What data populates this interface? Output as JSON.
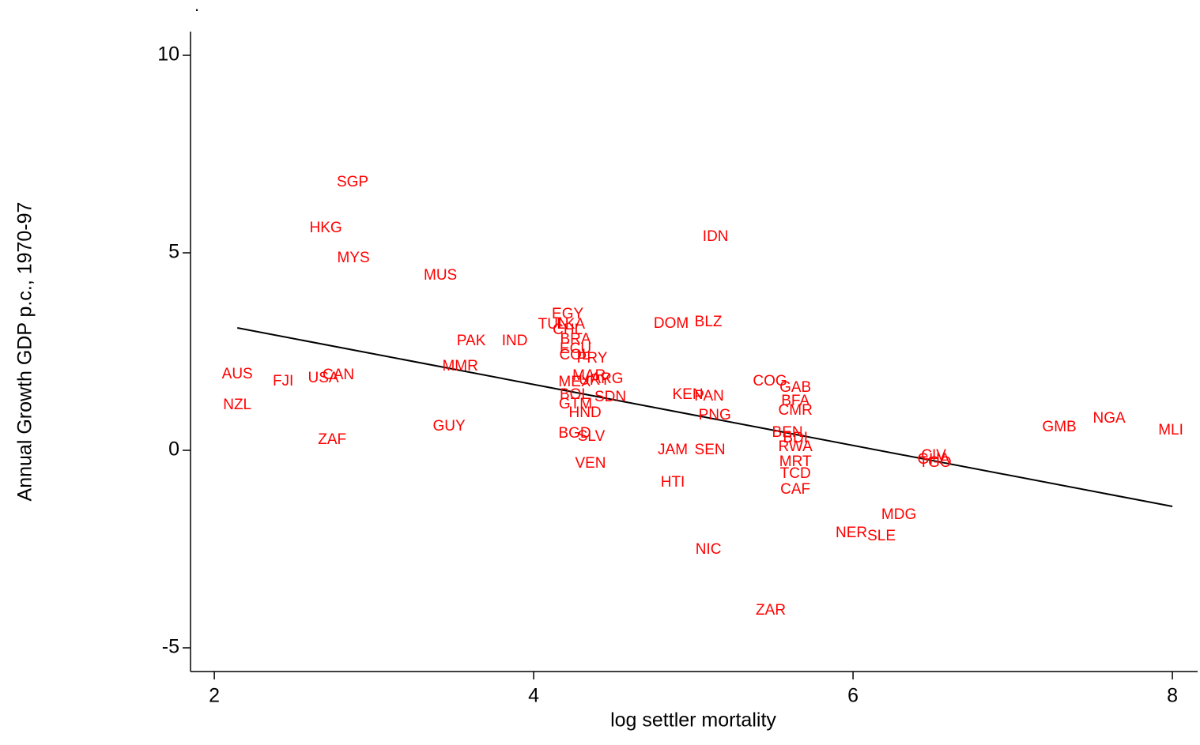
{
  "chart_data": {
    "type": "scatter",
    "title": ".",
    "x_label": "log settler mortality",
    "y_label": "Annual Growth GDP p.c., 1970-97",
    "xlim": [
      1.851,
      8.158
    ],
    "ylim": [
      -5.6,
      10.6
    ],
    "xticks": [
      2,
      4,
      6,
      8
    ],
    "yticks": [
      -5,
      0,
      5,
      10
    ],
    "color": "#ff0000",
    "labels": [
      "SGP",
      "HKG",
      "MYS",
      "MUS",
      "IDN",
      "EGY",
      "TUN",
      "LKA",
      "CHL",
      "BRA",
      "PAK",
      "IND",
      "ECU",
      "COL",
      "PRY",
      "DOM",
      "BLZ",
      "MMR",
      "AUS",
      "FJI",
      "USA",
      "CAN",
      "NZL",
      "ZAF",
      "GUY",
      "MAR",
      "ARG",
      "URY",
      "MEX",
      "BOL",
      "SDN",
      "GTM",
      "HND",
      "BGD",
      "SLV",
      "VEN",
      "KEN",
      "PAN",
      "PNG",
      "JAM",
      "SEN",
      "HTI",
      "NIC",
      "ZAR",
      "COG",
      "GAB",
      "BFA",
      "CMR",
      "BEN",
      "BDI",
      "RWA",
      "MRT",
      "TCD",
      "CAF",
      "MDG",
      "NER",
      "SLE",
      "CIV",
      "GHA",
      "TGO",
      "GMB",
      "NGA",
      "MLI"
    ],
    "x": [
      2.866,
      2.698,
      2.871,
      3.416,
      5.139,
      4.213,
      4.124,
      4.233,
      4.213,
      4.262,
      3.609,
      3.881,
      4.262,
      4.257,
      4.366,
      4.861,
      5.094,
      3.54,
      2.144,
      2.431,
      2.683,
      2.777,
      2.144,
      2.738,
      3.47,
      4.347,
      4.46,
      4.381,
      4.257,
      4.257,
      4.48,
      4.262,
      4.322,
      4.257,
      4.361,
      4.356,
      4.965,
      5.099,
      5.134,
      4.871,
      5.104,
      4.871,
      5.094,
      5.485,
      5.48,
      5.639,
      5.639,
      5.639,
      5.589,
      5.639,
      5.639,
      5.639,
      5.639,
      5.639,
      6.287,
      5.99,
      6.178,
      6.505,
      6.505,
      6.515,
      7.292,
      7.604,
      7.99
    ],
    "values": [
      6.78,
      5.62,
      4.86,
      4.42,
      5.4,
      3.44,
      3.18,
      3.18,
      3.04,
      2.8,
      2.76,
      2.76,
      2.56,
      2.4,
      2.32,
      3.2,
      3.24,
      2.12,
      1.92,
      1.74,
      1.82,
      1.9,
      1.14,
      0.26,
      0.6,
      1.88,
      1.8,
      1.76,
      1.72,
      1.4,
      1.34,
      1.16,
      0.94,
      0.42,
      0.34,
      -0.34,
      1.4,
      1.36,
      0.88,
      0.0,
      0.0,
      -0.82,
      -2.52,
      -4.06,
      1.74,
      1.58,
      1.24,
      1.0,
      0.44,
      0.3,
      0.08,
      -0.3,
      -0.6,
      -1.0,
      -1.64,
      -2.1,
      -2.18,
      -0.14,
      -0.24,
      -0.32,
      0.58,
      0.8,
      0.5
    ],
    "fit_line": {
      "x": [
        2.144,
        8.0
      ],
      "values": [
        3.1,
        -1.42
      ],
      "color": "#000000"
    }
  }
}
